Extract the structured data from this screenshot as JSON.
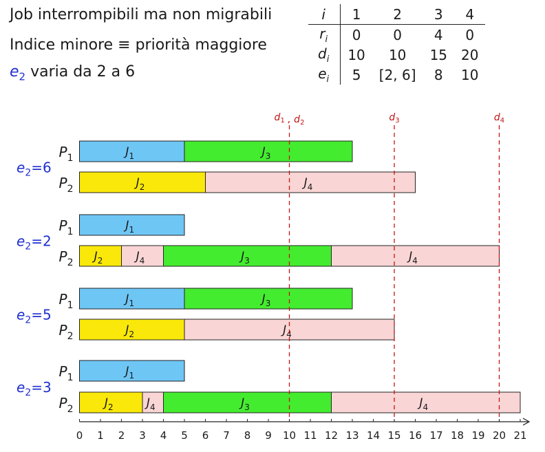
{
  "intro": {
    "line1": "Job interrompibili ma non migrabili",
    "line2": "Indice minore ≡ priorità maggiore",
    "line3_var": "e2",
    "line3_rest": " varia da 2 a 6"
  },
  "table": {
    "header": [
      "i",
      "1",
      "2",
      "3",
      "4"
    ],
    "rows": [
      [
        "r_i",
        "0",
        "0",
        "4",
        "0"
      ],
      [
        "d_i",
        "10",
        "10",
        "15",
        "20"
      ],
      [
        "e_i",
        "5",
        "[2, 6]",
        "8",
        "10"
      ]
    ]
  },
  "deadline_labels": [
    {
      "label": "d1 , d2",
      "t": 10
    },
    {
      "label": "d3",
      "t": 15
    },
    {
      "label": "d4",
      "t": 20
    }
  ],
  "colors": {
    "J1": "#6ec6f5",
    "J2": "#f9e80a",
    "J3": "#44ec2f",
    "J4": "#f9d5d5",
    "deadline": "#c21515",
    "scenario_label": "#1f2fcf"
  },
  "chart_data": {
    "type": "gantt",
    "x_axis": {
      "min": 0,
      "max": 21,
      "ticks": [
        "0",
        "1",
        "2",
        "3",
        "4",
        "5",
        "6",
        "7",
        "8",
        "9",
        "10",
        "11",
        "12",
        "13",
        "14",
        "15",
        "16",
        "17",
        "18",
        "19",
        "20",
        "21"
      ]
    },
    "deadlines": [
      10,
      15,
      20
    ],
    "scenarios": [
      {
        "label": "e2=6",
        "processors": [
          {
            "name": "P1",
            "segments": [
              {
                "job": "J1",
                "start": 0,
                "end": 5
              },
              {
                "job": "J3",
                "start": 5,
                "end": 13
              }
            ]
          },
          {
            "name": "P2",
            "segments": [
              {
                "job": "J2",
                "start": 0,
                "end": 6
              },
              {
                "job": "J4",
                "start": 6,
                "end": 16
              }
            ]
          }
        ]
      },
      {
        "label": "e2=2",
        "processors": [
          {
            "name": "P1",
            "segments": [
              {
                "job": "J1",
                "start": 0,
                "end": 5
              }
            ]
          },
          {
            "name": "P2",
            "segments": [
              {
                "job": "J2",
                "start": 0,
                "end": 2
              },
              {
                "job": "J4",
                "start": 2,
                "end": 4
              },
              {
                "job": "J3",
                "start": 4,
                "end": 12
              },
              {
                "job": "J4",
                "start": 12,
                "end": 20
              }
            ]
          }
        ]
      },
      {
        "label": "e2=5",
        "processors": [
          {
            "name": "P1",
            "segments": [
              {
                "job": "J1",
                "start": 0,
                "end": 5
              },
              {
                "job": "J3",
                "start": 5,
                "end": 13
              }
            ]
          },
          {
            "name": "P2",
            "segments": [
              {
                "job": "J2",
                "start": 0,
                "end": 5
              },
              {
                "job": "J4",
                "start": 5,
                "end": 15
              }
            ]
          }
        ]
      },
      {
        "label": "e2=3",
        "processors": [
          {
            "name": "P1",
            "segments": [
              {
                "job": "J1",
                "start": 0,
                "end": 5
              }
            ]
          },
          {
            "name": "P2",
            "segments": [
              {
                "job": "J2",
                "start": 0,
                "end": 3
              },
              {
                "job": "J4",
                "start": 3,
                "end": 4
              },
              {
                "job": "J3",
                "start": 4,
                "end": 12
              },
              {
                "job": "J4",
                "start": 12,
                "end": 21
              }
            ]
          }
        ]
      }
    ]
  }
}
